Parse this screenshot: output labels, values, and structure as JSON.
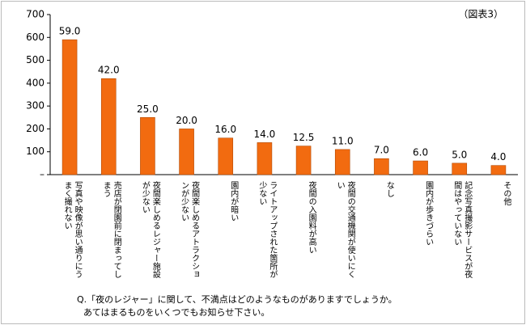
{
  "chart_data": {
    "type": "bar",
    "annotation": "（図表3）",
    "footnotes": [
      "Q.「夜のレジャー」に関して、不満点はどのようなものがありますでしょうか。",
      "あてはまるものをいくつでもお知らせ下さい。"
    ],
    "categories": [
      "写真や映像が思い通りにうまく撮れない",
      "売店が閉園前に閉まってしまう",
      "夜間楽しめるレジャー施設が少ない",
      "夜間楽しめるアトラクションが少ない",
      "園内が暗い",
      "ライトアップされた箇所が少ない",
      "夜間の入園料が高い",
      "夜間の交通機関が使いにくい",
      "なし",
      "園内が歩きづらい",
      "記念写真撮影サービスが夜間はやっていない",
      "その他"
    ],
    "values": [
      590,
      420,
      250,
      200,
      160,
      140,
      125,
      110,
      70,
      60,
      50,
      40
    ],
    "value_labels": [
      "59.0",
      "42.0",
      "25.0",
      "20.0",
      "16.0",
      "14.0",
      "12.5",
      "11.0",
      "7.0",
      "6.0",
      "5.0",
      "4.0"
    ],
    "color": "#f26b10",
    "ylim": [
      0,
      700
    ],
    "yticks": [
      {
        "value": 0,
        "label": "–"
      },
      100,
      200,
      300,
      400,
      500,
      600,
      700
    ],
    "grid": false
  }
}
